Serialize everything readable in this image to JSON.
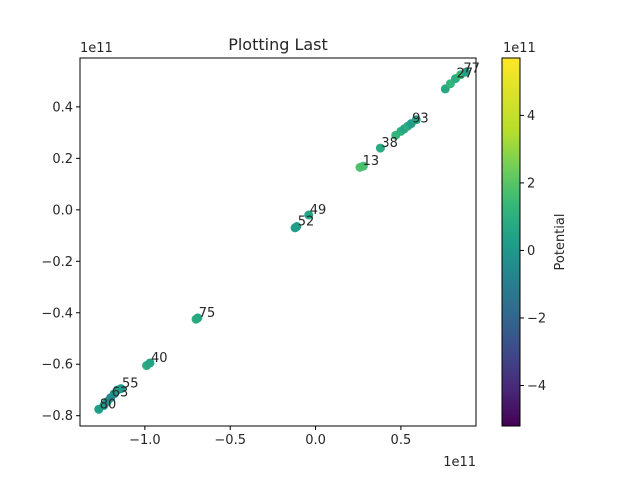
{
  "chart_data": {
    "type": "scatter",
    "title": "Plotting Last",
    "xlabel": "",
    "ylabel": "",
    "x_offset_label": "1e11",
    "y_offset_label": "1e11",
    "xlim": [
      -1.38,
      0.94
    ],
    "ylim": [
      -0.84,
      0.59
    ],
    "x_ticks": [
      -1.0,
      -0.5,
      0.0,
      0.5
    ],
    "x_tick_labels": [
      "−1.0",
      "−0.5",
      "0.0",
      "0.5"
    ],
    "y_ticks": [
      -0.8,
      -0.6,
      -0.4,
      -0.2,
      0.0,
      0.2,
      0.4
    ],
    "y_tick_labels": [
      "−0.8",
      "−0.6",
      "−0.4",
      "−0.2",
      "0.0",
      "0.2",
      "0.4"
    ],
    "colorbar": {
      "label": "Potential",
      "offset_label": "1e11",
      "colormap": "viridis",
      "range": [
        -5.2,
        5.7
      ],
      "ticks": [
        -4,
        -2,
        0,
        2,
        4
      ],
      "tick_labels": [
        "−4",
        "−2",
        "0",
        "2",
        "4"
      ]
    },
    "points": [
      {
        "x": -1.27,
        "y": -0.775,
        "c": 0.3
      },
      {
        "x": -1.24,
        "y": -0.76,
        "c": 0.1
      },
      {
        "x": -1.22,
        "y": -0.745,
        "c": -0.3
      },
      {
        "x": -1.2,
        "y": -0.73,
        "c": -0.6
      },
      {
        "x": -1.18,
        "y": -0.715,
        "c": -0.3
      },
      {
        "x": -1.16,
        "y": -0.7,
        "c": 0.2
      },
      {
        "x": -1.14,
        "y": -0.695,
        "c": 0.1
      },
      {
        "x": -0.99,
        "y": -0.605,
        "c": 0.8
      },
      {
        "x": -0.97,
        "y": -0.595,
        "c": 0.5
      },
      {
        "x": -0.7,
        "y": -0.425,
        "c": 0.9
      },
      {
        "x": -0.69,
        "y": -0.42,
        "c": 0.7
      },
      {
        "x": -0.12,
        "y": -0.07,
        "c": 0.3
      },
      {
        "x": -0.11,
        "y": -0.065,
        "c": 0.2
      },
      {
        "x": -0.04,
        "y": -0.02,
        "c": 0.5
      },
      {
        "x": 0.26,
        "y": 0.165,
        "c": 1.9
      },
      {
        "x": 0.28,
        "y": 0.17,
        "c": 1.7
      },
      {
        "x": 0.38,
        "y": 0.24,
        "c": 0.8
      },
      {
        "x": 0.47,
        "y": 0.29,
        "c": 1.3
      },
      {
        "x": 0.5,
        "y": 0.305,
        "c": 1.0
      },
      {
        "x": 0.52,
        "y": 0.315,
        "c": 0.6
      },
      {
        "x": 0.54,
        "y": 0.325,
        "c": 0.9
      },
      {
        "x": 0.56,
        "y": 0.335,
        "c": 0.3
      },
      {
        "x": 0.59,
        "y": 0.35,
        "c": 0.5
      },
      {
        "x": 0.76,
        "y": 0.47,
        "c": 0.7
      },
      {
        "x": 0.79,
        "y": 0.49,
        "c": 1.2
      },
      {
        "x": 0.82,
        "y": 0.51,
        "c": 0.9
      },
      {
        "x": 0.85,
        "y": 0.525,
        "c": 1.4
      },
      {
        "x": 0.88,
        "y": 0.535,
        "c": 0.4
      }
    ],
    "annotations": [
      {
        "text": "80",
        "x": -1.27,
        "y": -0.775
      },
      {
        "text": "63",
        "x": -1.2,
        "y": -0.73
      },
      {
        "text": "55",
        "x": -1.14,
        "y": -0.695
      },
      {
        "text": "40",
        "x": -0.97,
        "y": -0.595
      },
      {
        "text": "75",
        "x": -0.69,
        "y": -0.42
      },
      {
        "text": "52",
        "x": -0.11,
        "y": -0.065
      },
      {
        "text": "49",
        "x": -0.04,
        "y": -0.02
      },
      {
        "text": "13",
        "x": 0.27,
        "y": 0.17
      },
      {
        "text": "38",
        "x": 0.38,
        "y": 0.24
      },
      {
        "text": "93",
        "x": 0.56,
        "y": 0.335
      },
      {
        "text": "27",
        "x": 0.82,
        "y": 0.51
      },
      {
        "text": "77",
        "x": 0.86,
        "y": 0.53
      }
    ]
  }
}
